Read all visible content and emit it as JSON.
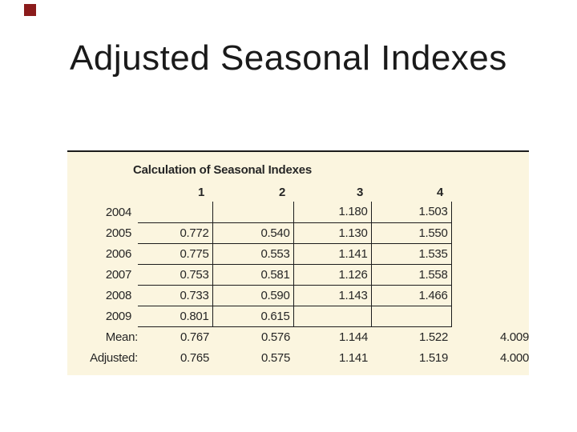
{
  "slide": {
    "title": "Adjusted Seasonal Indexes",
    "accent_color": "#8B1B1B",
    "panel_background": "#FBF5DF"
  },
  "table": {
    "title": "Calculation of Seasonal Indexes",
    "columns": [
      "1",
      "2",
      "3",
      "4"
    ],
    "rows": [
      {
        "label": "2004",
        "values": [
          "",
          "",
          "1.180",
          "1.503"
        ],
        "total": ""
      },
      {
        "label": "2005",
        "values": [
          "0.772",
          "0.540",
          "1.130",
          "1.550"
        ],
        "total": ""
      },
      {
        "label": "2006",
        "values": [
          "0.775",
          "0.553",
          "1.141",
          "1.535"
        ],
        "total": ""
      },
      {
        "label": "2007",
        "values": [
          "0.753",
          "0.581",
          "1.126",
          "1.558"
        ],
        "total": ""
      },
      {
        "label": "2008",
        "values": [
          "0.733",
          "0.590",
          "1.143",
          "1.466"
        ],
        "total": ""
      },
      {
        "label": "2009",
        "values": [
          "0.801",
          "0.615",
          "",
          ""
        ],
        "total": ""
      }
    ],
    "summary_rows": [
      {
        "label": "Mean:",
        "values": [
          "0.767",
          "0.576",
          "1.144",
          "1.522"
        ],
        "total": "4.009"
      },
      {
        "label": "Adjusted:",
        "values": [
          "0.765",
          "0.575",
          "1.141",
          "1.519"
        ],
        "total": "4.000"
      }
    ]
  },
  "chart_data": {
    "type": "table",
    "title": "Calculation of Seasonal Indexes",
    "categories": [
      "1",
      "2",
      "3",
      "4"
    ],
    "series": [
      {
        "name": "2004",
        "values": [
          null,
          null,
          1.18,
          1.503
        ]
      },
      {
        "name": "2005",
        "values": [
          0.772,
          0.54,
          1.13,
          1.55
        ]
      },
      {
        "name": "2006",
        "values": [
          0.775,
          0.553,
          1.141,
          1.535
        ]
      },
      {
        "name": "2007",
        "values": [
          0.753,
          0.581,
          1.126,
          1.558
        ]
      },
      {
        "name": "2008",
        "values": [
          0.733,
          0.59,
          1.143,
          1.466
        ]
      },
      {
        "name": "2009",
        "values": [
          0.801,
          0.615,
          null,
          null
        ]
      },
      {
        "name": "Mean",
        "values": [
          0.767,
          0.576,
          1.144,
          1.522
        ],
        "total": 4.009
      },
      {
        "name": "Adjusted",
        "values": [
          0.765,
          0.575,
          1.141,
          1.519
        ],
        "total": 4.0
      }
    ]
  }
}
